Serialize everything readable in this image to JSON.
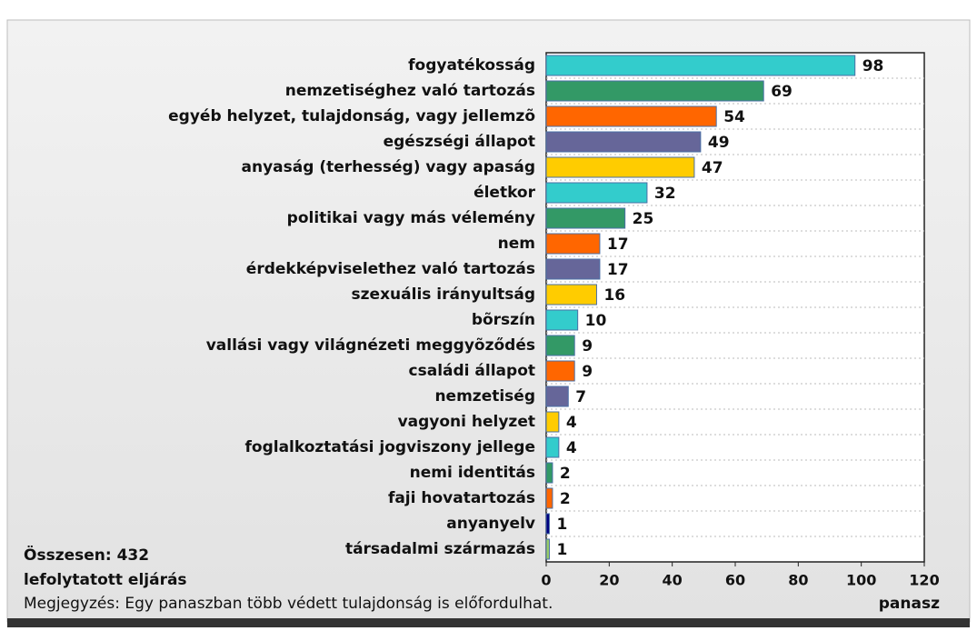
{
  "chart_data": {
    "type": "hbar",
    "categories": [
      "fogyatékosság",
      "nemzetiséghez való tartozás",
      "egyéb helyzet, tulajdonság, vagy jellemzõ",
      "egészségi állapot",
      "anyaság (terhesség) vagy apaság",
      "életkor",
      "politikai vagy más vélemény",
      "nem",
      "érdekképviselethez való tartozás",
      "szexuális irányultság",
      "bõrszín",
      "vallási vagy világnézeti meggyõződés",
      "családi állapot",
      "nemzetiség",
      "vagyoni helyzet",
      "foglalkoztatási jogviszony jellege",
      "nemi identitás",
      "faji hovatartozás",
      "anyanyelv",
      "társadalmi származás"
    ],
    "values": [
      98,
      69,
      54,
      49,
      47,
      32,
      25,
      17,
      17,
      16,
      10,
      9,
      9,
      7,
      4,
      4,
      2,
      2,
      1,
      1
    ],
    "colors": [
      "#33cccc",
      "#339966",
      "#ff6600",
      "#666699",
      "#ffcc00",
      "#33cccc",
      "#339966",
      "#ff6600",
      "#666699",
      "#ffcc00",
      "#33cccc",
      "#339966",
      "#ff6600",
      "#666699",
      "#ffcc00",
      "#33cccc",
      "#339966",
      "#ff6600",
      "#000080",
      "#99cc66"
    ],
    "xlim": [
      0,
      120
    ],
    "xticks": [
      0,
      20,
      40,
      60,
      80,
      100,
      120
    ],
    "xlabel": "panasz",
    "total": "Összesen: 432",
    "total_label": "lefolytatott eljárás",
    "note": "Megjegyzés: Egy panaszban több védett tulajdonság is előfordulhat.",
    "grid": true
  }
}
